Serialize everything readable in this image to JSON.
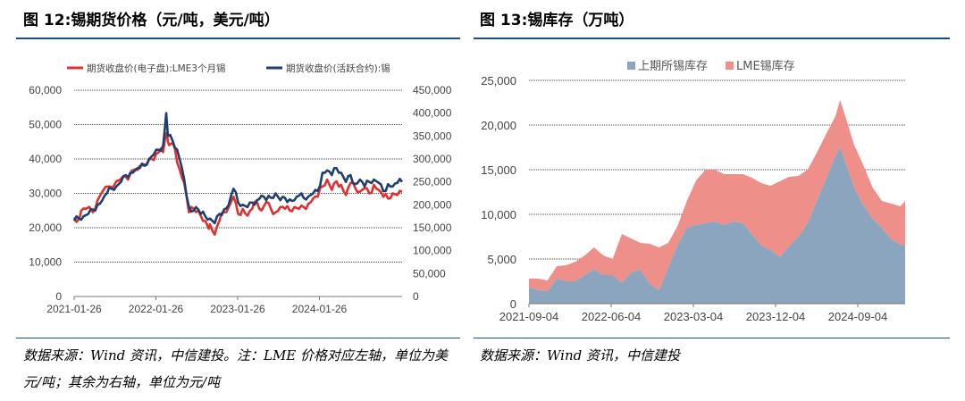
{
  "left": {
    "title": "图 12:锡期货价格（元/吨，美元/吨）",
    "source": "数据来源：Wind 资讯，中信建投。注：LME 价格对应左轴，单位为美元/吨；其余为右轴，单位为元/吨"
  },
  "right": {
    "title": "图 13:锡库存（万吨）",
    "source": "数据来源：Wind 资讯，中信建投"
  },
  "colors": {
    "red": "#e03030",
    "navy": "#1f3f6e",
    "blue_area": "#8aa5bd",
    "pink_area": "#ee8f8a",
    "rule": "#1f4e79"
  },
  "chart_data": [
    {
      "type": "line",
      "x_ticks": [
        "2021-01-26",
        "2022-01-26",
        "2023-01-26",
        "2024-01-26"
      ],
      "left_axis": {
        "ylim": [
          0,
          60000
        ],
        "ticks": [
          "0",
          "10,000",
          "20,000",
          "30,000",
          "40,000",
          "50,000",
          "60,000"
        ]
      },
      "right_axis": {
        "ylim": [
          0,
          450000
        ],
        "ticks": [
          "0",
          "50,000",
          "100,000",
          "150,000",
          "200,000",
          "250,000",
          "300,000",
          "350,000",
          "400,000",
          "450,000"
        ]
      },
      "legend": "top",
      "series": [
        {
          "name": "期货收盘价(电子盘):LME3个月锡",
          "axis": "left",
          "points": [
            [
              0,
              23000
            ],
            [
              0.02,
              22500
            ],
            [
              0.03,
              25000
            ],
            [
              0.05,
              25500
            ],
            [
              0.08,
              24500
            ],
            [
              0.1,
              28000
            ],
            [
              0.12,
              30500
            ],
            [
              0.15,
              32000
            ],
            [
              0.18,
              33500
            ],
            [
              0.21,
              35000
            ],
            [
              0.23,
              34000
            ],
            [
              0.26,
              37000
            ],
            [
              0.28,
              38000
            ],
            [
              0.31,
              38500
            ],
            [
              0.33,
              40000
            ],
            [
              0.35,
              41500
            ],
            [
              0.37,
              43000
            ],
            [
              0.38,
              42000
            ],
            [
              0.395,
              47500
            ],
            [
              0.405,
              44000
            ],
            [
              0.415,
              44500
            ],
            [
              0.43,
              43000
            ],
            [
              0.45,
              37000
            ],
            [
              0.47,
              33000
            ],
            [
              0.49,
              24500
            ],
            [
              0.51,
              25500
            ],
            [
              0.53,
              25000
            ],
            [
              0.55,
              22000
            ],
            [
              0.57,
              20500
            ],
            [
              0.58,
              21000
            ],
            [
              0.6,
              18000
            ],
            [
              0.62,
              22000
            ],
            [
              0.64,
              24500
            ],
            [
              0.66,
              26000
            ],
            [
              0.68,
              29000
            ],
            [
              0.7,
              24000
            ],
            [
              0.72,
              25500
            ],
            [
              0.74,
              23500
            ],
            [
              0.76,
              25500
            ],
            [
              0.78,
              27500
            ],
            [
              0.8,
              25000
            ],
            [
              0.82,
              27500
            ],
            [
              0.84,
              25500
            ],
            [
              0.86,
              24500
            ],
            [
              0.88,
              26000
            ],
            [
              0.9,
              25500
            ],
            [
              0.92,
              25000
            ],
            [
              0.94,
              26000
            ],
            [
              0.96,
              25500
            ],
            [
              0.98,
              26000
            ],
            [
              1.0,
              27000
            ],
            [
              1.02,
              28500
            ],
            [
              1.04,
              29000
            ],
            [
              1.06,
              32000
            ],
            [
              1.08,
              34000
            ],
            [
              1.1,
              31000
            ],
            [
              1.12,
              33500
            ],
            [
              1.14,
              32500
            ],
            [
              1.16,
              29500
            ],
            [
              1.18,
              33000
            ],
            [
              1.2,
              31500
            ],
            [
              1.22,
              30500
            ],
            [
              1.24,
              31500
            ],
            [
              1.26,
              30000
            ],
            [
              1.28,
              32500
            ],
            [
              1.3,
              31000
            ],
            [
              1.32,
              29000
            ],
            [
              1.34,
              28500
            ],
            [
              1.36,
              30000
            ],
            [
              1.38,
              29500
            ],
            [
              1.4,
              30500
            ]
          ]
        },
        {
          "name": "期货收盘价(活跃合约):锡",
          "axis": "right",
          "points": [
            [
              0,
              165000
            ],
            [
              0.02,
              170000
            ],
            [
              0.04,
              175000
            ],
            [
              0.06,
              180000
            ],
            [
              0.08,
              190000
            ],
            [
              0.1,
              200000
            ],
            [
              0.12,
              210000
            ],
            [
              0.14,
              225000
            ],
            [
              0.16,
              235000
            ],
            [
              0.18,
              240000
            ],
            [
              0.2,
              250000
            ],
            [
              0.22,
              265000
            ],
            [
              0.24,
              270000
            ],
            [
              0.26,
              275000
            ],
            [
              0.28,
              280000
            ],
            [
              0.3,
              285000
            ],
            [
              0.32,
              300000
            ],
            [
              0.34,
              310000
            ],
            [
              0.36,
              320000
            ],
            [
              0.38,
              330000
            ],
            [
              0.393,
              400000
            ],
            [
              0.4,
              350000
            ],
            [
              0.42,
              340000
            ],
            [
              0.44,
              320000
            ],
            [
              0.46,
              280000
            ],
            [
              0.48,
              220000
            ],
            [
              0.5,
              185000
            ],
            [
              0.52,
              195000
            ],
            [
              0.54,
              180000
            ],
            [
              0.56,
              175000
            ],
            [
              0.58,
              170000
            ],
            [
              0.6,
              160000
            ],
            [
              0.62,
              180000
            ],
            [
              0.64,
              190000
            ],
            [
              0.66,
              200000
            ],
            [
              0.68,
              235000
            ],
            [
              0.7,
              205000
            ],
            [
              0.72,
              200000
            ],
            [
              0.74,
              195000
            ],
            [
              0.76,
              205000
            ],
            [
              0.78,
              210000
            ],
            [
              0.8,
              220000
            ],
            [
              0.82,
              210000
            ],
            [
              0.84,
              215000
            ],
            [
              0.86,
              225000
            ],
            [
              0.88,
              210000
            ],
            [
              0.9,
              215000
            ],
            [
              0.92,
              212000
            ],
            [
              0.94,
              210000
            ],
            [
              0.96,
              220000
            ],
            [
              0.98,
              215000
            ],
            [
              1.0,
              218000
            ],
            [
              1.02,
              225000
            ],
            [
              1.04,
              230000
            ],
            [
              1.06,
              270000
            ],
            [
              1.08,
              275000
            ],
            [
              1.1,
              265000
            ],
            [
              1.12,
              280000
            ],
            [
              1.14,
              270000
            ],
            [
              1.16,
              250000
            ],
            [
              1.18,
              265000
            ],
            [
              1.2,
              245000
            ],
            [
              1.22,
              255000
            ],
            [
              1.24,
              240000
            ],
            [
              1.26,
              250000
            ],
            [
              1.28,
              255000
            ],
            [
              1.3,
              248000
            ],
            [
              1.32,
              230000
            ],
            [
              1.34,
              245000
            ],
            [
              1.36,
              240000
            ],
            [
              1.38,
              248000
            ],
            [
              1.4,
              250000
            ]
          ]
        }
      ]
    },
    {
      "type": "area",
      "stacked": true,
      "x_ticks": [
        "2021-09-04",
        "2022-06-04",
        "2023-03-04",
        "2023-12-04",
        "2024-09-04"
      ],
      "ylim": [
        0,
        25000
      ],
      "y_ticks": [
        "0",
        "5,000",
        "10,000",
        "15,000",
        "20,000",
        "25,000"
      ],
      "legend": "top",
      "series": [
        {
          "name": "上期所锡库存",
          "points": [
            [
              0,
              1800
            ],
            [
              0.1,
              1500
            ],
            [
              0.2,
              1400
            ],
            [
              0.3,
              2800
            ],
            [
              0.4,
              2500
            ],
            [
              0.5,
              2500
            ],
            [
              0.6,
              3200
            ],
            [
              0.7,
              3800
            ],
            [
              0.8,
              3200
            ],
            [
              0.9,
              3200
            ],
            [
              1.0,
              2300
            ],
            [
              1.1,
              3500
            ],
            [
              1.2,
              3800
            ],
            [
              1.3,
              2200
            ],
            [
              1.4,
              1500
            ],
            [
              1.5,
              4000
            ],
            [
              1.6,
              6500
            ],
            [
              1.7,
              8500
            ],
            [
              1.8,
              8800
            ],
            [
              1.9,
              9000
            ],
            [
              2.0,
              9200
            ],
            [
              2.1,
              8800
            ],
            [
              2.2,
              9200
            ],
            [
              2.3,
              9000
            ],
            [
              2.4,
              7800
            ],
            [
              2.5,
              6500
            ],
            [
              2.6,
              6000
            ],
            [
              2.7,
              5200
            ],
            [
              2.8,
              6400
            ],
            [
              2.9,
              7500
            ],
            [
              3.0,
              9000
            ],
            [
              3.1,
              11500
            ],
            [
              3.2,
              14000
            ],
            [
              3.3,
              16500
            ],
            [
              3.35,
              17500
            ],
            [
              3.4,
              16000
            ],
            [
              3.5,
              13000
            ],
            [
              3.6,
              11000
            ],
            [
              3.7,
              9500
            ],
            [
              3.8,
              8500
            ],
            [
              3.9,
              7200
            ],
            [
              4.0,
              6600
            ],
            [
              4.05,
              6500
            ]
          ]
        },
        {
          "name": "LME锡库存",
          "points": [
            [
              0,
              1000
            ],
            [
              0.1,
              1300
            ],
            [
              0.2,
              1200
            ],
            [
              0.3,
              1400
            ],
            [
              0.4,
              1800
            ],
            [
              0.5,
              2200
            ],
            [
              0.6,
              2200
            ],
            [
              0.7,
              2500
            ],
            [
              0.8,
              2200
            ],
            [
              0.9,
              1800
            ],
            [
              1.0,
              5500
            ],
            [
              1.1,
              3800
            ],
            [
              1.2,
              3000
            ],
            [
              1.3,
              4500
            ],
            [
              1.4,
              4800
            ],
            [
              1.5,
              2800
            ],
            [
              1.6,
              2200
            ],
            [
              1.7,
              3000
            ],
            [
              1.8,
              5000
            ],
            [
              1.9,
              6000
            ],
            [
              2.0,
              5800
            ],
            [
              2.1,
              5700
            ],
            [
              2.2,
              5300
            ],
            [
              2.3,
              5500
            ],
            [
              2.4,
              6300
            ],
            [
              2.5,
              7000
            ],
            [
              2.6,
              7200
            ],
            [
              2.7,
              8500
            ],
            [
              2.8,
              7800
            ],
            [
              2.9,
              6800
            ],
            [
              3.0,
              6000
            ],
            [
              3.1,
              5400
            ],
            [
              3.2,
              5000
            ],
            [
              3.3,
              4500
            ],
            [
              3.35,
              5300
            ],
            [
              3.4,
              5200
            ],
            [
              3.5,
              4800
            ],
            [
              3.6,
              4500
            ],
            [
              3.7,
              3500
            ],
            [
              3.8,
              3000
            ],
            [
              3.9,
              4000
            ],
            [
              4.0,
              4300
            ],
            [
              4.05,
              5000
            ]
          ]
        }
      ]
    }
  ]
}
